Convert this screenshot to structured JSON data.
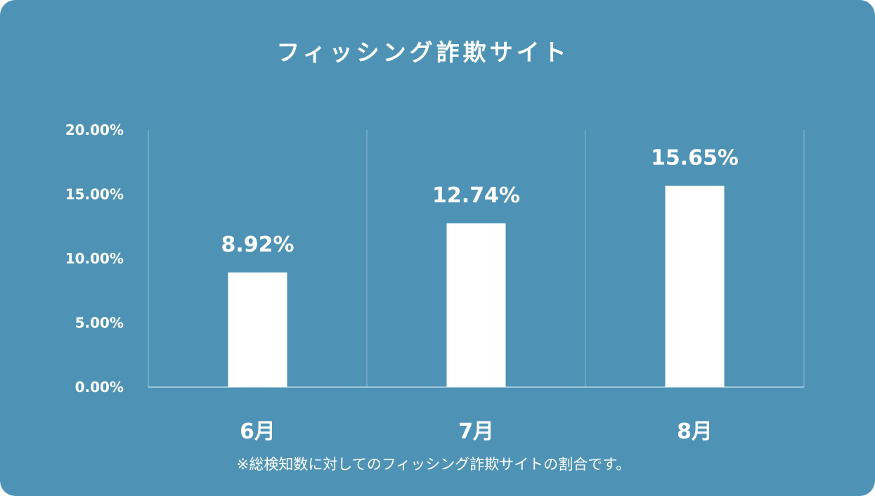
{
  "chart_data": {
    "type": "bar",
    "title": "フィッシング詐欺サイト",
    "categories": [
      "6月",
      "7月",
      "8月"
    ],
    "values": [
      8.92,
      12.74,
      15.65
    ],
    "value_labels": [
      "8.92%",
      "12.74%",
      "15.65%"
    ],
    "yticks": [
      "0.00%",
      "5.00%",
      "10.00%",
      "15.00%",
      "20.00%"
    ],
    "ylim": [
      0,
      20
    ],
    "xlabel": "",
    "ylabel": "",
    "grid": "vertical separators between categories",
    "legend": "none",
    "note": "※総検知数に対してのフィッシング詐欺サイトの割合です。",
    "colors": {
      "background": "#4e93b6",
      "bar": "#ffffff",
      "text": "#ffffff"
    }
  }
}
